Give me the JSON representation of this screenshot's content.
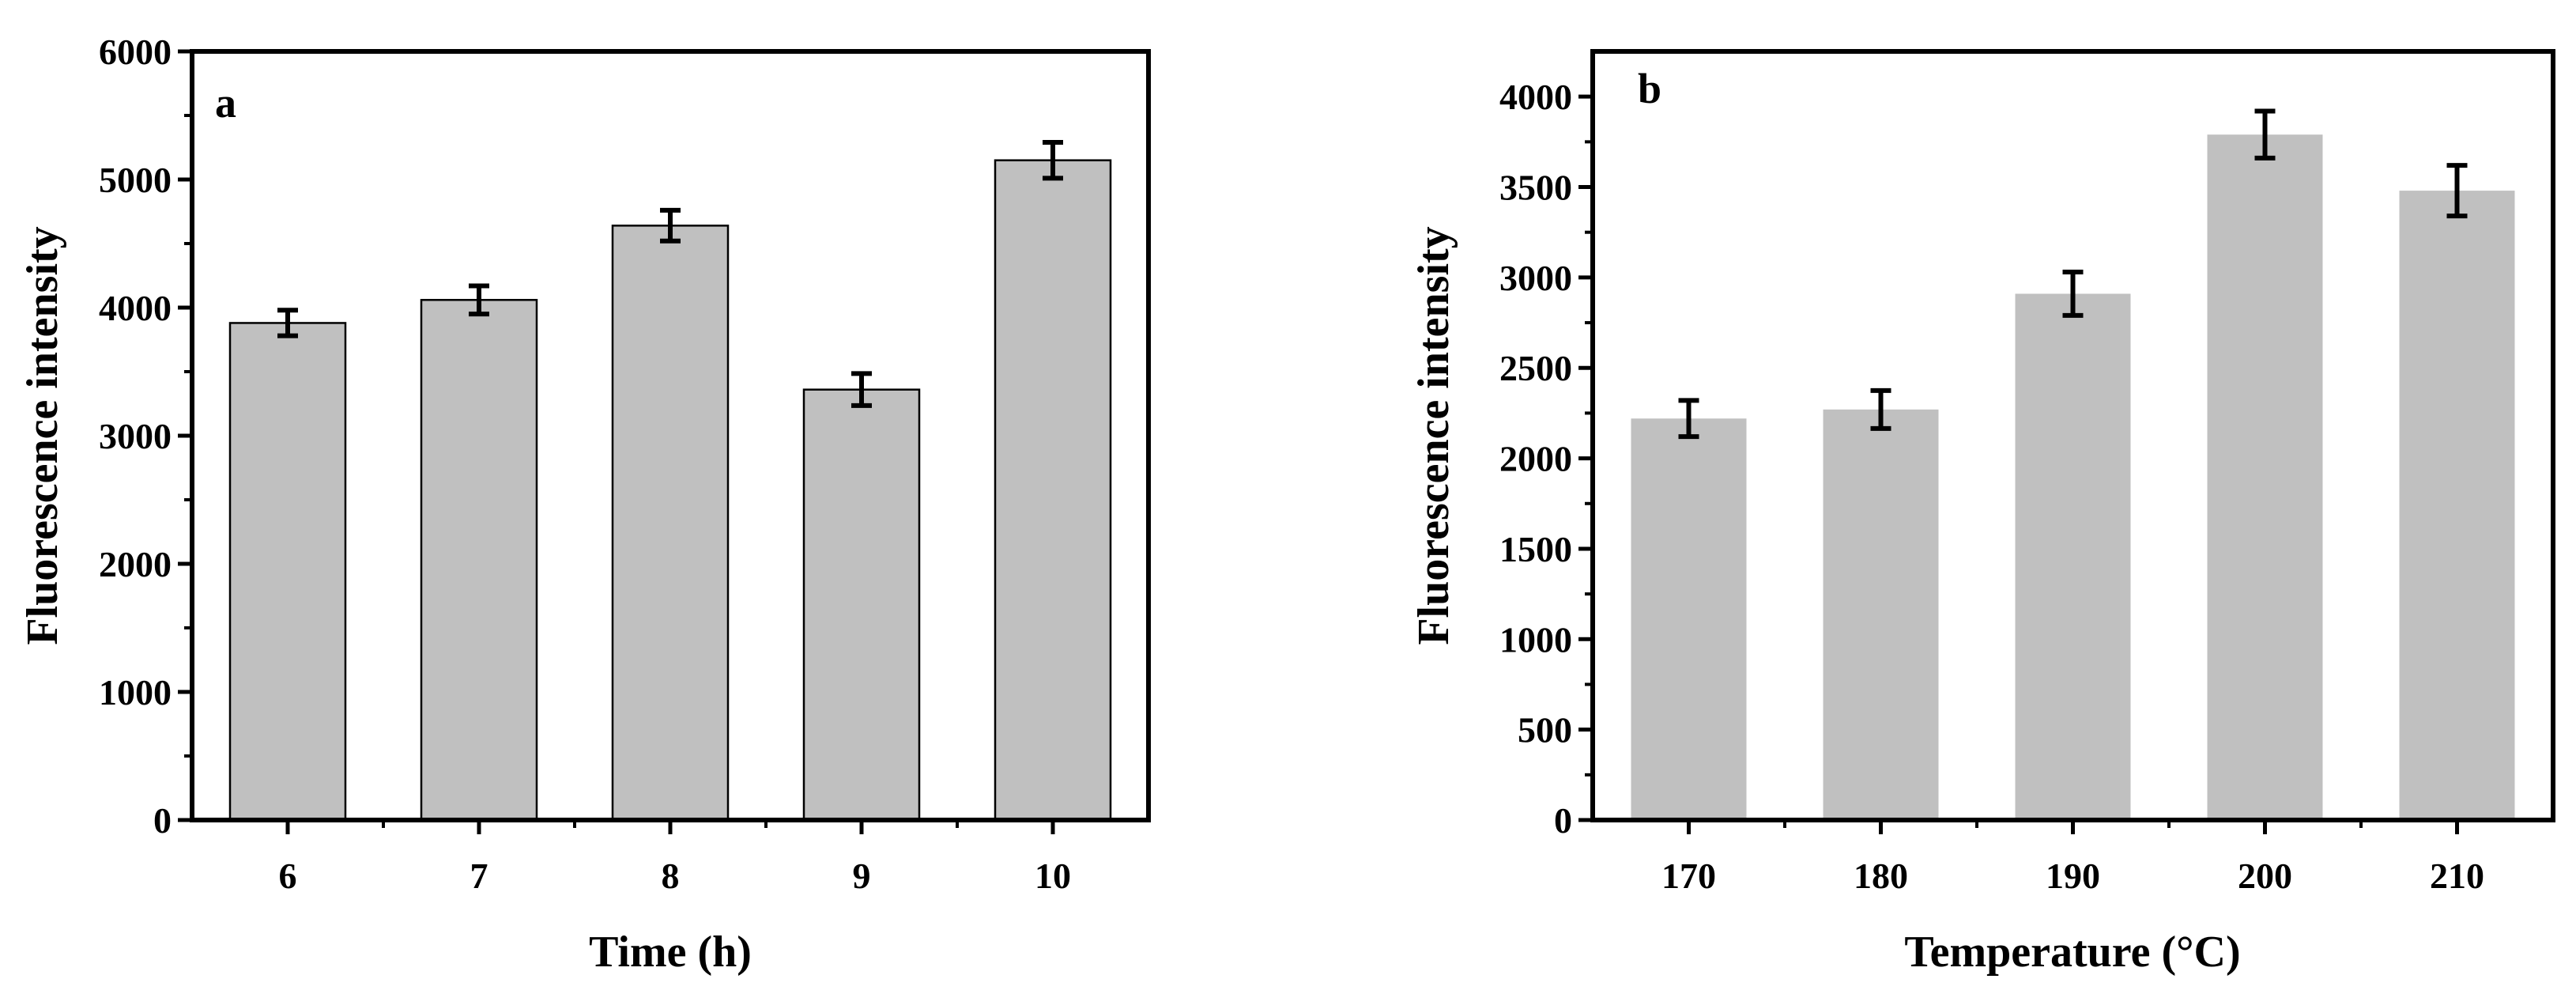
{
  "chart_data": [
    {
      "type": "bar",
      "panel_label": "a",
      "categories": [
        "6",
        "7",
        "8",
        "9",
        "10"
      ],
      "values": [
        3880,
        4060,
        4640,
        3360,
        5150
      ],
      "errors": [
        100,
        110,
        120,
        125,
        140
      ],
      "xlabel": "Time (h)",
      "ylabel": "Fluorescence intensity",
      "ylim": [
        0,
        6000
      ],
      "yticks": [
        "0",
        "1000",
        "2000",
        "3000",
        "4000",
        "5000",
        "6000"
      ],
      "bar_fill": "#c0c0c0",
      "bar_outline": true,
      "grid": false
    },
    {
      "type": "bar",
      "panel_label": "b",
      "categories": [
        "170",
        "180",
        "190",
        "200",
        "210"
      ],
      "values": [
        2220,
        2270,
        2910,
        3790,
        3480
      ],
      "errors": [
        100,
        105,
        120,
        130,
        140
      ],
      "xlabel": "Temperature (°C)",
      "ylabel": "Fluorescence intensity",
      "ylim": [
        0,
        4250
      ],
      "yticks": [
        "0",
        "500",
        "1000",
        "1500",
        "2000",
        "2500",
        "3000",
        "3500",
        "4000"
      ],
      "bar_fill": "#c0c0c0",
      "bar_outline": false,
      "grid": false
    }
  ]
}
